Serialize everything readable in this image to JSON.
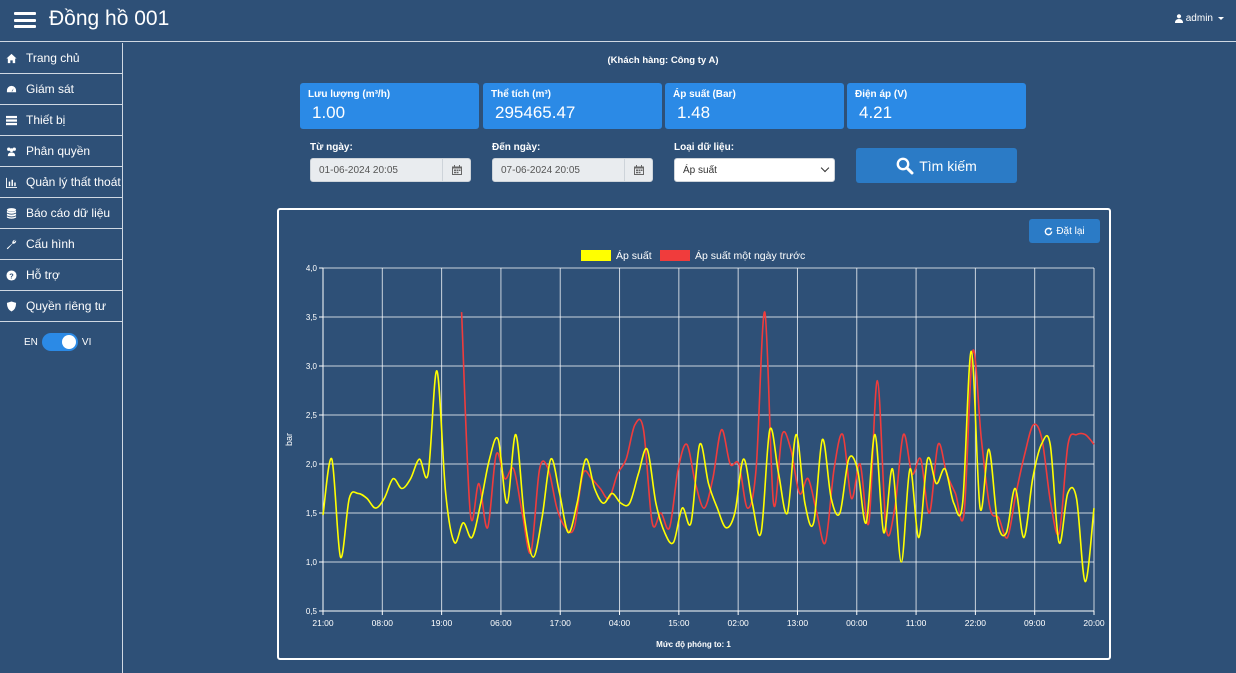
{
  "app": {
    "title": "Đồng hồ 001",
    "user": "admin"
  },
  "sidebar": {
    "items": [
      {
        "label": "Trang chủ",
        "icon": "home-icon"
      },
      {
        "label": "Giám sát",
        "icon": "dashboard-icon"
      },
      {
        "label": "Thiết bị",
        "icon": "list-icon"
      },
      {
        "label": "Phân quyền",
        "icon": "users-icon"
      },
      {
        "label": "Quản lý thất thoát",
        "icon": "bar-chart-icon"
      },
      {
        "label": "Báo cáo dữ liệu",
        "icon": "database-icon"
      },
      {
        "label": "Cấu hình",
        "icon": "wrench-icon"
      },
      {
        "label": "Hỗ trợ",
        "icon": "question-icon"
      },
      {
        "label": "Quyền riêng tư",
        "icon": "shield-icon"
      }
    ],
    "lang": {
      "left": "EN",
      "right": "VI"
    }
  },
  "customer": "(Khách hàng: Công ty A)",
  "cards": [
    {
      "label": "Lưu lượng (m³/h)",
      "value": "1.00"
    },
    {
      "label": "Thể tích (m³)",
      "value": "295465.47"
    },
    {
      "label": "Áp suất (Bar)",
      "value": "1.48"
    },
    {
      "label": "Điện áp (V)",
      "value": "4.21"
    }
  ],
  "filters": {
    "from_label": "Từ ngày:",
    "from_value": "01-06-2024 20:05",
    "to_label": "Đến ngày:",
    "to_value": "07-06-2024 20:05",
    "type_label": "Loại dữ liệu:",
    "type_value": "Áp suất",
    "search_label": "Tìm kiếm"
  },
  "chart_controls": {
    "reset_label": "Đặt lại",
    "zoom_text": "Mức độ phóng to: 1"
  },
  "colors": {
    "series1": "#ffff00",
    "series2": "#f03c3c",
    "accent": "#2b8ae6",
    "bg": "#2e5077"
  },
  "chart_data": {
    "type": "line",
    "ylabel": "bar",
    "ylim": [
      0.5,
      4.0
    ],
    "yticks": [
      "0,5",
      "1,0",
      "1,5",
      "2,0",
      "2,5",
      "3,0",
      "3,5",
      "4,0"
    ],
    "xticks": [
      "21:00",
      "08:00",
      "19:00",
      "06:00",
      "17:00",
      "04:00",
      "15:00",
      "02:00",
      "13:00",
      "00:00",
      "11:00",
      "22:00",
      "09:00",
      "20:00"
    ],
    "series": [
      {
        "name": "Áp suất",
        "values": [
          1.48,
          2.05,
          1.05,
          1.65,
          1.7,
          1.65,
          1.55,
          1.65,
          1.85,
          1.75,
          1.85,
          2.05,
          1.9,
          2.95,
          1.7,
          1.2,
          1.4,
          1.25,
          1.6,
          2.05,
          2.25,
          1.6,
          2.3,
          1.45,
          1.05,
          1.45,
          2.05,
          1.7,
          1.3,
          1.6,
          2.05,
          1.75,
          1.6,
          1.7,
          1.6,
          1.6,
          1.9,
          2.15,
          1.6,
          1.3,
          1.2,
          1.55,
          1.4,
          2.2,
          1.8,
          1.55,
          1.35,
          1.5,
          2.05,
          1.6,
          1.3,
          2.35,
          1.9,
          1.5,
          2.3,
          1.6,
          1.4,
          2.25,
          1.65,
          1.5,
          2.05,
          1.95,
          1.4,
          2.3,
          1.3,
          1.95,
          1.0,
          1.95,
          1.25,
          2.05,
          1.8,
          1.95,
          1.6,
          1.6,
          3.15,
          1.55,
          2.15,
          1.4,
          1.3,
          1.75,
          1.25,
          1.85,
          2.2,
          2.2,
          1.2,
          1.7,
          1.65,
          0.8,
          1.55
        ]
      },
      {
        "name": "Áp suất một ngày trước",
        "values": [
          1.55,
          null,
          null,
          null,
          null,
          null,
          null,
          null,
          null,
          null,
          null,
          null,
          null,
          null,
          null,
          null,
          3.55,
          1.5,
          1.8,
          1.35,
          2.1,
          1.85,
          1.95,
          1.5,
          1.1,
          1.95,
          1.95,
          1.55,
          1.35,
          1.35,
          1.9,
          1.85,
          1.75,
          1.65,
          1.9,
          2.05,
          2.4,
          2.35,
          1.4,
          1.5,
          1.35,
          1.95,
          2.2,
          1.8,
          1.55,
          1.85,
          2.35,
          2.0,
          2.0,
          1.55,
          1.95,
          3.55,
          1.6,
          2.3,
          2.15,
          1.7,
          1.85,
          1.5,
          1.2,
          1.95,
          2.3,
          1.65,
          2.0,
          1.4,
          2.85,
          1.35,
          1.55,
          2.3,
          1.9,
          2.05,
          1.5,
          2.2,
          1.9,
          1.7,
          1.5,
          3.15,
          2.25,
          1.55,
          1.45,
          1.25,
          1.7,
          2.1,
          2.4,
          2.25,
          1.6,
          1.3,
          2.2,
          2.3,
          2.3,
          2.2
        ]
      }
    ]
  }
}
